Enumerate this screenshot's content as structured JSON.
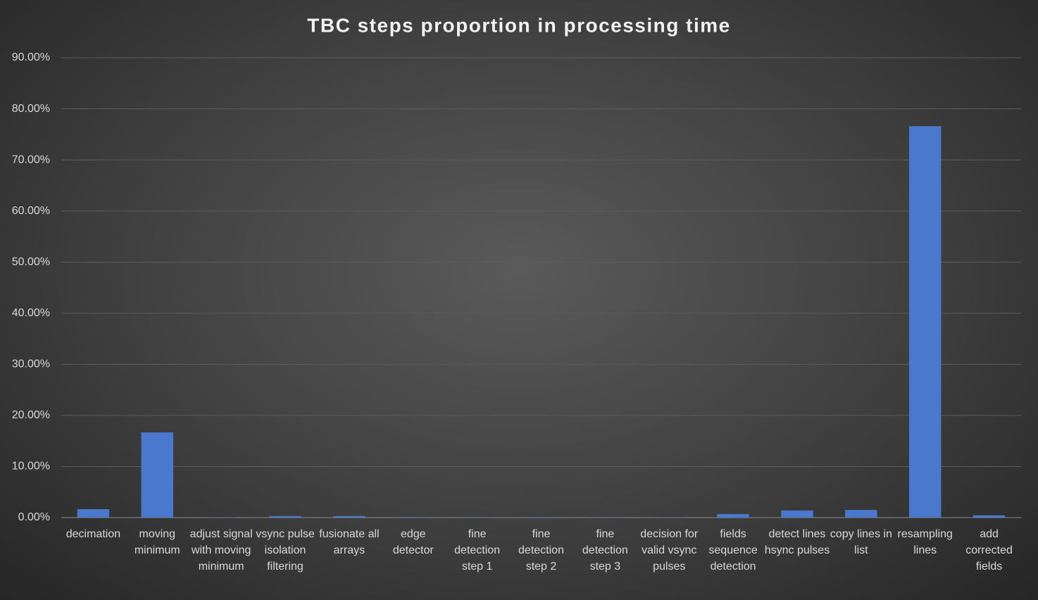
{
  "chart_data": {
    "type": "bar",
    "title": "TBC steps proportion in processing time",
    "categories": [
      "decimation",
      "moving minimum",
      "adjust signal with moving minimum",
      "vsync pulse isolation filtering",
      "fusionate all arrays",
      "edge detector",
      "fine detection step 1",
      "fine detection step 2",
      "fine detection step 3",
      "decision for valid vsync pulses",
      "fields sequence detection",
      "detect lines hsync pulses",
      "copy lines in list",
      "resampling lines",
      "add corrected fields"
    ],
    "values": [
      1.65,
      16.67,
      0.05,
      0.3,
      0.3,
      0.1,
      0.05,
      0.1,
      0.05,
      0.05,
      0.7,
      1.4,
      1.5,
      76.6,
      0.45
    ],
    "color": "#4a78cc",
    "ylim": [
      0,
      90
    ],
    "yticks": [
      {
        "value": 0,
        "label": "0.00%"
      },
      {
        "value": 10,
        "label": "10.00%"
      },
      {
        "value": 20,
        "label": "20.00%"
      },
      {
        "value": 30,
        "label": "30.00%"
      },
      {
        "value": 40,
        "label": "40.00%"
      },
      {
        "value": 50,
        "label": "50.00%"
      },
      {
        "value": 60,
        "label": "60.00%"
      },
      {
        "value": 70,
        "label": "70.00%"
      },
      {
        "value": 80,
        "label": "80.00%"
      },
      {
        "value": 90,
        "label": "90.00%"
      }
    ],
    "grid": true
  }
}
